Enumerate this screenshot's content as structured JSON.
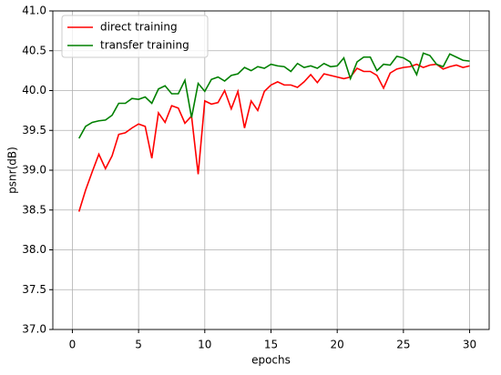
{
  "chart_data": {
    "type": "line",
    "x": [
      0.5,
      1,
      1.5,
      2,
      2.5,
      3,
      3.5,
      4,
      4.5,
      5,
      5.5,
      6,
      6.5,
      7,
      7.5,
      8,
      8.5,
      9,
      9.5,
      10,
      10.5,
      11,
      11.5,
      12,
      12.5,
      13,
      13.5,
      14,
      14.5,
      15,
      15.5,
      16,
      16.5,
      17,
      17.5,
      18,
      18.5,
      19,
      19.5,
      20,
      20.5,
      21,
      21.5,
      22,
      22.5,
      23,
      23.5,
      24,
      24.5,
      25,
      25.5,
      26,
      26.5,
      27,
      27.5,
      28,
      28.5,
      29,
      29.5,
      30
    ],
    "series": [
      {
        "name": "direct training",
        "color": "#ff0000",
        "values": [
          38.48,
          38.75,
          38.98,
          39.2,
          39.02,
          39.18,
          39.45,
          39.47,
          39.53,
          39.58,
          39.55,
          39.15,
          39.72,
          39.6,
          39.81,
          39.78,
          39.59,
          39.68,
          38.95,
          39.87,
          39.83,
          39.85,
          40.0,
          39.77,
          39.99,
          39.53,
          39.87,
          39.75,
          39.99,
          40.07,
          40.11,
          40.07,
          40.07,
          40.04,
          40.11,
          40.2,
          40.1,
          40.21,
          40.19,
          40.17,
          40.15,
          40.17,
          40.28,
          40.24,
          40.24,
          40.19,
          40.03,
          40.22,
          40.27,
          40.29,
          40.3,
          40.33,
          40.29,
          40.32,
          40.33,
          40.27,
          40.3,
          40.32,
          40.29,
          40.31
        ]
      },
      {
        "name": "transfer training",
        "color": "#008000",
        "values": [
          39.4,
          39.55,
          39.6,
          39.62,
          39.63,
          39.69,
          39.84,
          39.84,
          39.9,
          39.89,
          39.92,
          39.84,
          40.02,
          40.06,
          39.96,
          39.96,
          40.13,
          39.66,
          40.09,
          39.99,
          40.14,
          40.17,
          40.12,
          40.19,
          40.21,
          40.29,
          40.25,
          40.3,
          40.28,
          40.33,
          40.31,
          40.3,
          40.24,
          40.34,
          40.29,
          40.31,
          40.28,
          40.34,
          40.3,
          40.31,
          40.41,
          40.15,
          40.36,
          40.42,
          40.42,
          40.25,
          40.33,
          40.32,
          40.43,
          40.41,
          40.36,
          40.2,
          40.47,
          40.44,
          40.33,
          40.3,
          40.46,
          40.42,
          40.38,
          40.37
        ]
      }
    ],
    "xlabel": "epochs",
    "ylabel": "psnr(dB)",
    "xlim": [
      -1.475,
      31.475
    ],
    "xticks": [
      0,
      5,
      10,
      15,
      20,
      25,
      30
    ],
    "ylim": [
      37,
      41
    ],
    "yticks": [
      {
        "value": 37,
        "label": "37.0"
      },
      {
        "value": 37.5,
        "label": "37.5"
      },
      {
        "value": 38,
        "label": "38.0"
      },
      {
        "value": 38.5,
        "label": "38.5"
      },
      {
        "value": 39,
        "label": "39.0"
      },
      {
        "value": 39.5,
        "label": "39.5"
      },
      {
        "value": 40,
        "label": "40.0"
      },
      {
        "value": 40.5,
        "label": "40.5"
      },
      {
        "value": 41,
        "label": "41.0"
      }
    ],
    "grid": true,
    "legend": "upper-left"
  }
}
